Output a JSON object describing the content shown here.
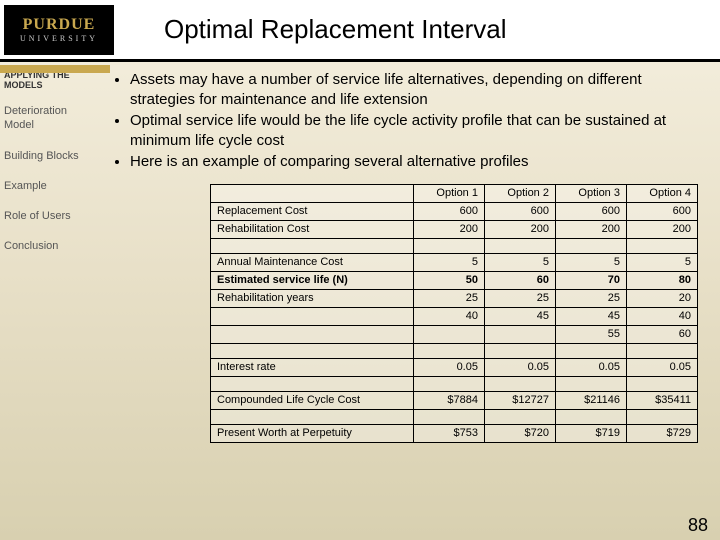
{
  "header": {
    "logo_main": "PURDUE",
    "logo_sub": "UNIVERSITY",
    "title": "Optimal Replacement Interval"
  },
  "sidebar": {
    "heading": "APPLYING THE MODELS",
    "items": [
      "Deterioration Model",
      "Building Blocks",
      "Example",
      "Role of Users",
      "Conclusion"
    ]
  },
  "bullets": [
    "Assets may have a number of service life alternatives, depending on different strategies for maintenance and life extension",
    "Optimal service life would be the life cycle activity profile that can be sustained at minimum life cycle cost",
    "Here is an example of comparing several alternative profiles"
  ],
  "table": {
    "columns": [
      "",
      "Option 1",
      "Option 2",
      "Option 3",
      "Option 4"
    ],
    "sections": [
      {
        "rows": [
          {
            "label": "Replacement Cost",
            "vals": [
              "600",
              "600",
              "600",
              "600"
            ]
          },
          {
            "label": "Rehabilitation Cost",
            "vals": [
              "200",
              "200",
              "200",
              "200"
            ]
          }
        ]
      },
      {
        "rows": [
          {
            "label": "Annual Maintenance Cost",
            "vals": [
              "5",
              "5",
              "5",
              "5"
            ]
          },
          {
            "label": "Estimated service life (N)",
            "vals": [
              "50",
              "60",
              "70",
              "80"
            ],
            "bold": true
          },
          {
            "label": "Rehabilitation years",
            "vals": [
              "25",
              "25",
              "25",
              "20"
            ]
          },
          {
            "label": "",
            "vals": [
              "40",
              "45",
              "45",
              "40"
            ]
          },
          {
            "label": "",
            "vals": [
              "",
              "",
              "55",
              "60"
            ]
          }
        ]
      },
      {
        "rows": [
          {
            "label": "Interest rate",
            "vals": [
              "0.05",
              "0.05",
              "0.05",
              "0.05"
            ]
          }
        ]
      },
      {
        "rows": [
          {
            "label": "Compounded Life Cycle Cost",
            "vals": [
              "$7884",
              "$12727",
              "$21146",
              "$35411"
            ]
          }
        ]
      },
      {
        "rows": [
          {
            "label": "Present Worth at Perpetuity",
            "vals": [
              "$753",
              "$720",
              "$719",
              "$729"
            ]
          }
        ]
      }
    ]
  },
  "page_number": "88"
}
